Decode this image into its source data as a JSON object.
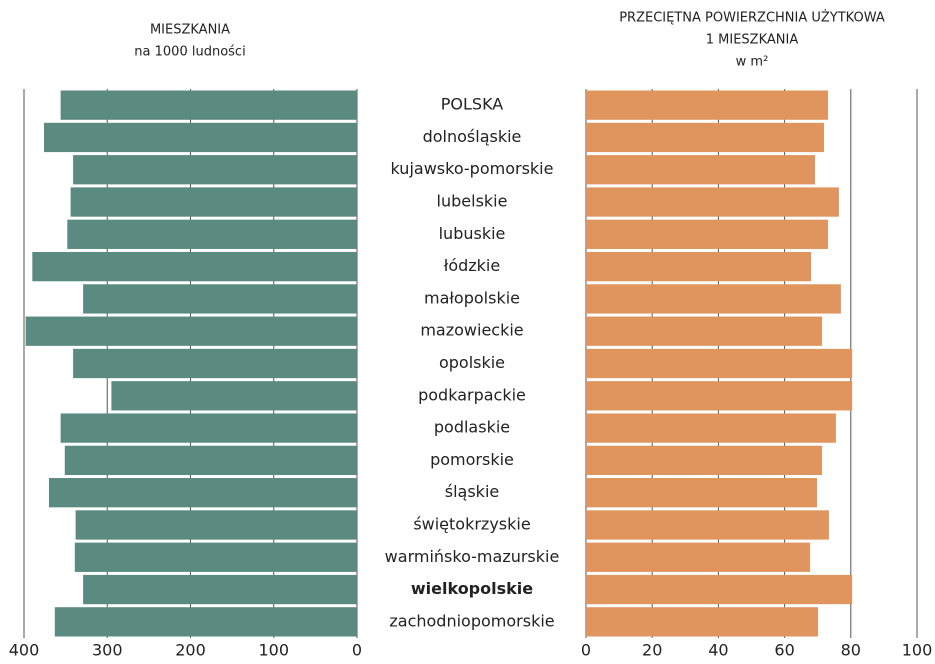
{
  "chart_data": [
    {
      "type": "bar",
      "orientation": "horizontal",
      "title": [
        "MIESZKANIA",
        "na 1000 ludności"
      ],
      "categories": [
        "POLSKA",
        "dolnośląskie",
        "kujawsko-pomorskie",
        "lubelskie",
        "lubuskie",
        "łódzkie",
        "małopolskie",
        "mazowieckie",
        "opolskie",
        "podkarpackie",
        "podlaskie",
        "pomorskie",
        "śląskie",
        "świętokrzyskie",
        "warmińsko-mazurskie",
        "wielkopolskie",
        "zachodniopomorskie"
      ],
      "highlight": 15,
      "values": [
        356,
        376,
        341,
        344,
        348,
        390,
        329,
        398,
        341,
        295,
        356,
        351,
        370,
        338,
        339,
        329,
        363
      ],
      "color": "#5a8a80",
      "xlim": [
        400,
        0
      ],
      "xticks": [
        400,
        300,
        200,
        100,
        0
      ],
      "grid": true
    },
    {
      "type": "bar",
      "orientation": "horizontal",
      "title": [
        "PRZECIĘTNA POWIERZCHNIA UŻYTKOWA",
        "1 MIESZKANIA",
        "w m²"
      ],
      "values": [
        73.1,
        71.9,
        69.2,
        76.4,
        73.1,
        68.0,
        77.0,
        71.3,
        80.4,
        80.4,
        75.5,
        71.3,
        69.8,
        73.4,
        67.7,
        80.4,
        70.1
      ],
      "color": "#e0955f",
      "xlim": [
        0,
        100
      ],
      "xticks": [
        0,
        20,
        40,
        60,
        80,
        100
      ],
      "grid": true
    }
  ]
}
